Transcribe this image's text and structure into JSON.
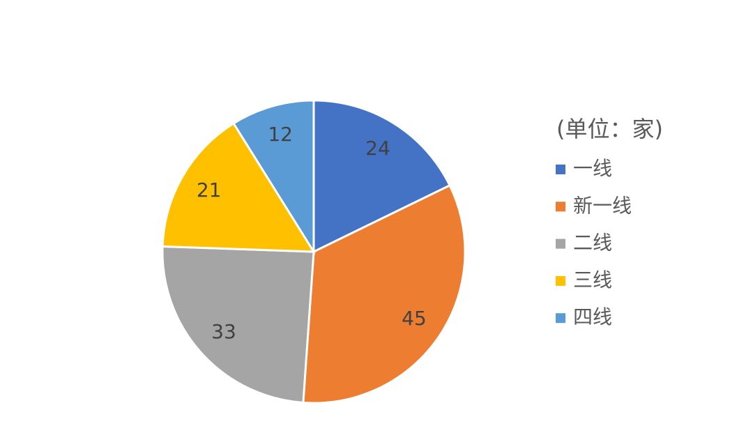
{
  "chart_data": {
    "type": "pie",
    "legend_title": "(单位：家)",
    "categories": [
      "一线",
      "新一线",
      "二线",
      "三线",
      "四线"
    ],
    "values": [
      24,
      45,
      33,
      21,
      12
    ],
    "colors": [
      "#4472c4",
      "#ed7d31",
      "#a5a5a5",
      "#ffc000",
      "#5b9bd5"
    ],
    "legend": "right"
  }
}
